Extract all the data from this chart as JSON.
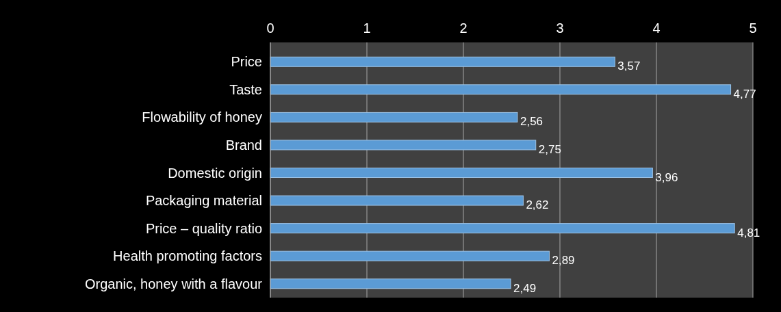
{
  "chart_data": {
    "type": "bar",
    "orientation": "horizontal",
    "categories": [
      "Price",
      "Taste",
      "Flowability of honey",
      "Brand",
      "Domestic origin",
      "Packaging material",
      "Price – quality ratio",
      "Health promoting factors",
      "Organic, honey with a flavour"
    ],
    "values": [
      3.57,
      4.77,
      2.56,
      2.75,
      3.96,
      2.62,
      4.81,
      2.89,
      2.49
    ],
    "value_labels": [
      "3,57",
      "4,77",
      "2,56",
      "2,75",
      "3,96",
      "2,62",
      "4,81",
      "2,89",
      "2,49"
    ],
    "color": "#5b9bd5",
    "xlim": [
      0,
      5
    ],
    "xticks": [
      0,
      1,
      2,
      3,
      4,
      5
    ],
    "grid": "x"
  }
}
